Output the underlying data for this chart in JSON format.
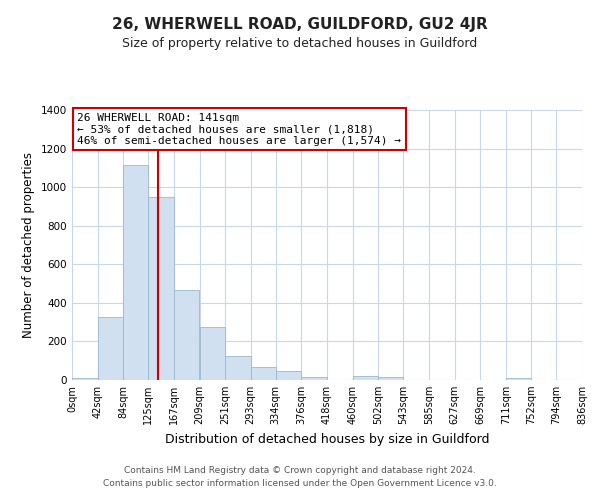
{
  "title": "26, WHERWELL ROAD, GUILDFORD, GU2 4JR",
  "subtitle": "Size of property relative to detached houses in Guildford",
  "xlabel": "Distribution of detached houses by size in Guildford",
  "ylabel": "Number of detached properties",
  "bar_edges": [
    0,
    42,
    84,
    125,
    167,
    209,
    251,
    293,
    334,
    376,
    418,
    460,
    502,
    543,
    585,
    627,
    669,
    711,
    752,
    794,
    836
  ],
  "bar_heights": [
    8,
    325,
    1115,
    950,
    465,
    275,
    125,
    70,
    45,
    18,
    0,
    20,
    15,
    0,
    0,
    0,
    0,
    8,
    0,
    0
  ],
  "bar_color": "#d0e0f0",
  "bar_edge_color": "#9ab8d0",
  "vline_x": 141,
  "vline_color": "#cc0000",
  "annotation_text": "26 WHERWELL ROAD: 141sqm\n← 53% of detached houses are smaller (1,818)\n46% of semi-detached houses are larger (1,574) →",
  "ylim": [
    0,
    1400
  ],
  "yticks": [
    0,
    200,
    400,
    600,
    800,
    1000,
    1200,
    1400
  ],
  "tick_labels": [
    "0sqm",
    "42sqm",
    "84sqm",
    "125sqm",
    "167sqm",
    "209sqm",
    "251sqm",
    "293sqm",
    "334sqm",
    "376sqm",
    "418sqm",
    "460sqm",
    "502sqm",
    "543sqm",
    "585sqm",
    "627sqm",
    "669sqm",
    "711sqm",
    "752sqm",
    "794sqm",
    "836sqm"
  ],
  "footer_line1": "Contains HM Land Registry data © Crown copyright and database right 2024.",
  "footer_line2": "Contains public sector information licensed under the Open Government Licence v3.0.",
  "background_color": "#ffffff",
  "grid_color": "#c8d8e8",
  "title_fontsize": 11,
  "subtitle_fontsize": 9,
  "ylabel_fontsize": 8.5,
  "xlabel_fontsize": 9,
  "tick_fontsize": 7,
  "annotation_fontsize": 8,
  "footer_fontsize": 6.5
}
